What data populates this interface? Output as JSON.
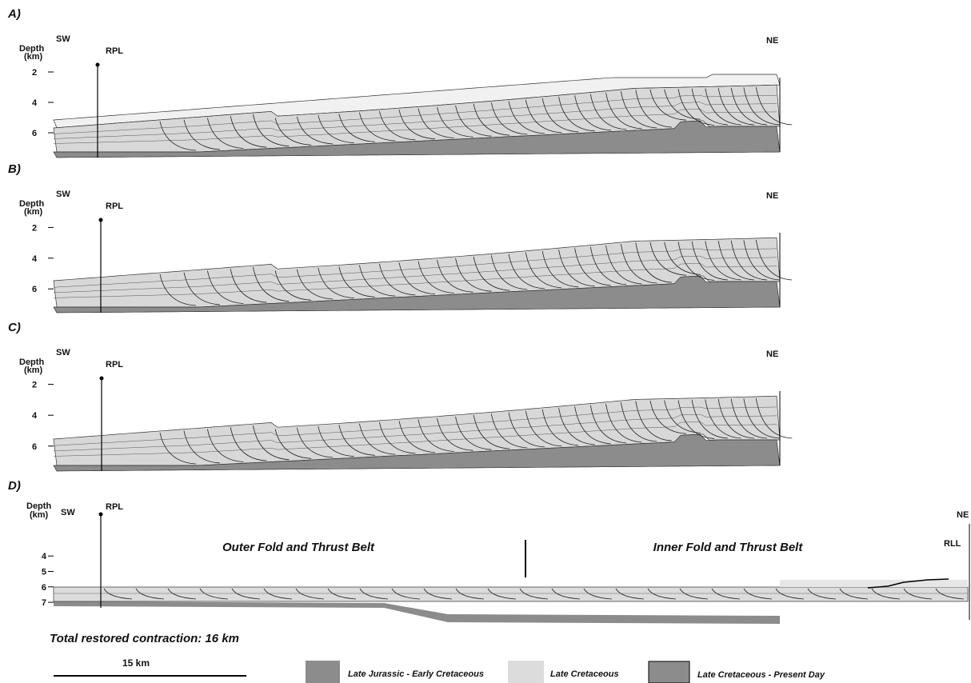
{
  "panels": [
    {
      "label": "A)",
      "depth": "Depth",
      "unit": "(km)",
      "left": "SW",
      "right": "NE",
      "well": "RPL",
      "ticks": [
        2,
        4,
        6
      ]
    },
    {
      "label": "B)",
      "depth": "Depth",
      "unit": "(km)",
      "left": "SW",
      "right": "NE",
      "well": "RPL",
      "ticks": [
        2,
        4,
        6
      ]
    },
    {
      "label": "C)",
      "depth": "Depth",
      "unit": "(km)",
      "left": "SW",
      "right": "NE",
      "well": "RPL",
      "ticks": [
        2,
        4,
        6
      ]
    },
    {
      "label": "D)",
      "depth": "Depth",
      "unit": "(km)",
      "left": "SW",
      "right": "NE",
      "well": "RPL",
      "ticks": [
        4,
        5,
        6,
        7
      ],
      "outer": "Outer Fold and Thrust Belt",
      "inner": "Inner Fold and Thrust Belt",
      "right_well": "RLL"
    }
  ],
  "contraction": "Total restored contraction: 16 km",
  "scale": "15 km",
  "legend": [
    "Late Jurassic - Early Cretaceous",
    "Late Cretaceous",
    "Late Cretaceous - Present Day"
  ]
}
